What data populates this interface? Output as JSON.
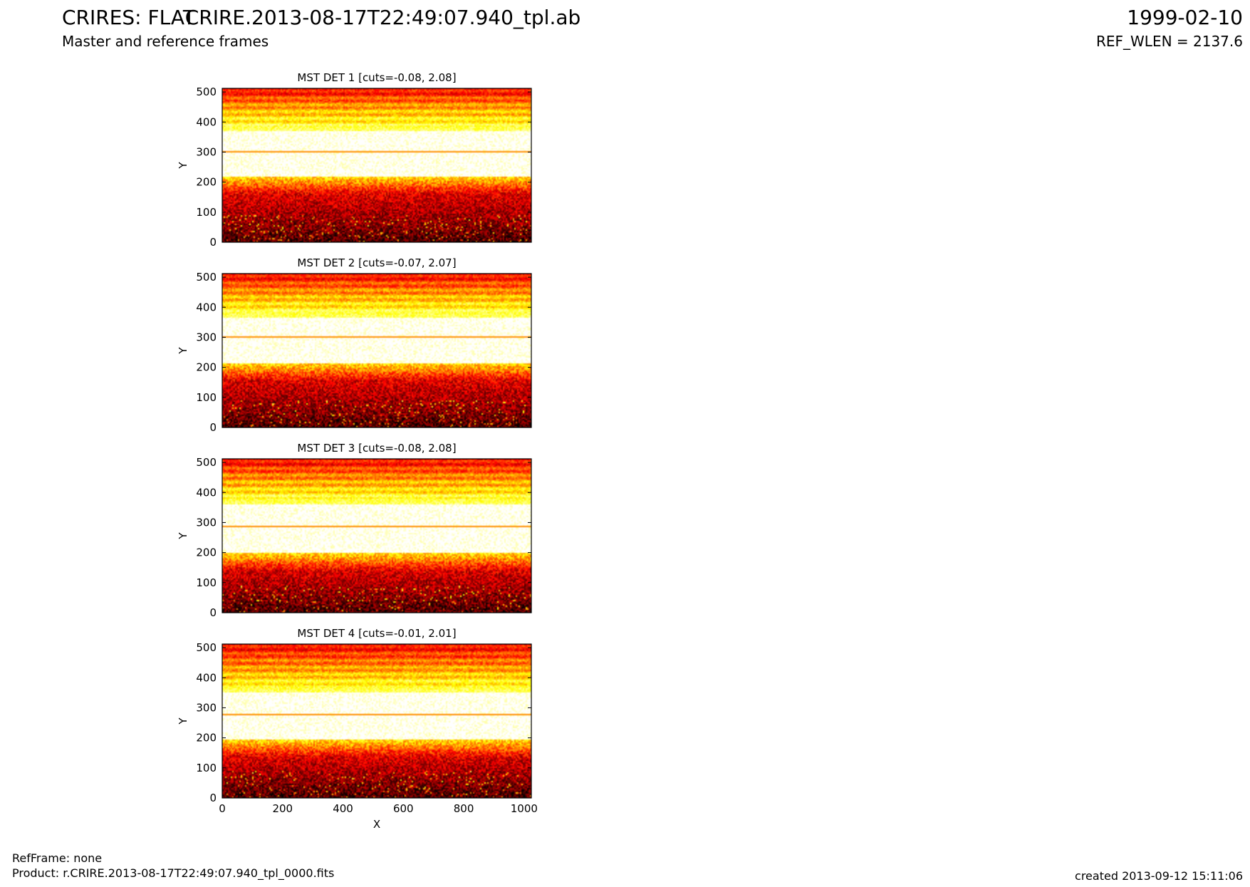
{
  "header": {
    "left_title": "CRIRES: FLAT",
    "center_title": "CRIRE.2013-08-17T22:49:07.940_tpl.ab",
    "right_date": "1999-02-10",
    "left_subtitle": "Master and reference frames",
    "right_subtitle": "REF_WLEN = 2137.6"
  },
  "footer": {
    "ref_frame": "RefFrame: none",
    "product": "Product: r.CRIRE.2013-08-17T22:49:07.940_tpl_0000.fits",
    "created": "created 2013-09-12 15:11:06"
  },
  "chart_data": [
    {
      "type": "heatmap",
      "title": "MST DET 1 [cuts=-0.08, 2.08]",
      "ylabel": "Y",
      "xlabel": "",
      "xlim": [
        0,
        1024
      ],
      "ylim": [
        0,
        512
      ],
      "yticks": [
        0,
        100,
        200,
        300,
        400,
        500
      ],
      "xticks": [],
      "colormap": "hot",
      "cuts": [
        -0.08,
        2.08
      ],
      "bright_band_y": [
        220,
        370
      ],
      "dark_line_y": 303
    },
    {
      "type": "heatmap",
      "title": "MST DET 2 [cuts=-0.07, 2.07]",
      "ylabel": "Y",
      "xlabel": "",
      "xlim": [
        0,
        1024
      ],
      "ylim": [
        0,
        512
      ],
      "yticks": [
        0,
        100,
        200,
        300,
        400,
        500
      ],
      "xticks": [],
      "colormap": "hot",
      "cuts": [
        -0.07,
        2.07
      ],
      "bright_band_y": [
        215,
        365
      ],
      "dark_line_y": 300
    },
    {
      "type": "heatmap",
      "title": "MST DET 3 [cuts=-0.08, 2.08]",
      "ylabel": "Y",
      "xlabel": "",
      "xlim": [
        0,
        1024
      ],
      "ylim": [
        0,
        512
      ],
      "yticks": [
        0,
        100,
        200,
        300,
        400,
        500
      ],
      "xticks": [],
      "colormap": "hot",
      "cuts": [
        -0.08,
        2.08
      ],
      "bright_band_y": [
        200,
        360
      ],
      "dark_line_y": 287
    },
    {
      "type": "heatmap",
      "title": "MST DET 4 [cuts=-0.01, 2.01]",
      "ylabel": "Y",
      "xlabel": "X",
      "xlim": [
        0,
        1024
      ],
      "ylim": [
        0,
        512
      ],
      "yticks": [
        0,
        100,
        200,
        300,
        400,
        500
      ],
      "xticks": [
        0,
        200,
        400,
        600,
        800,
        1000
      ],
      "colormap": "hot",
      "cuts": [
        -0.01,
        2.01
      ],
      "bright_band_y": [
        195,
        350
      ],
      "dark_line_y": 278
    }
  ]
}
